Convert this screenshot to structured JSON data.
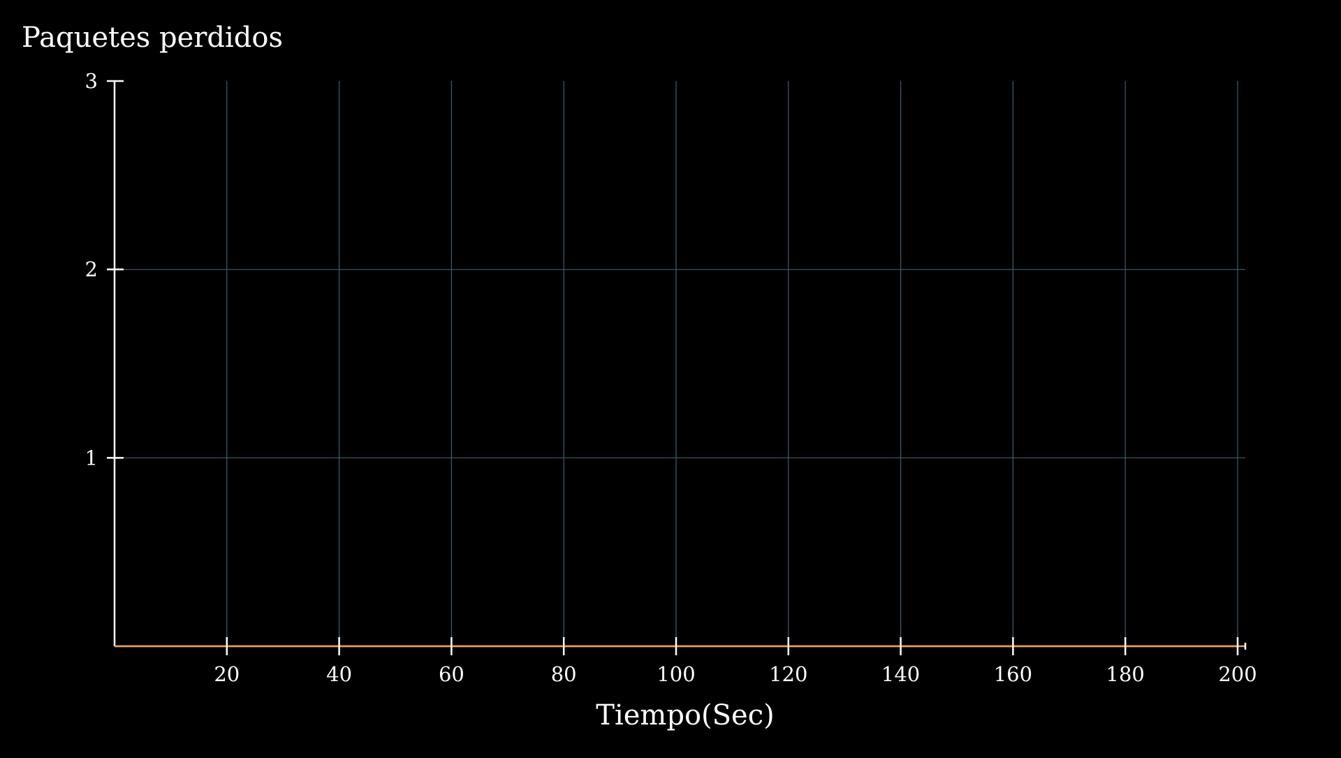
{
  "chart_data": {
    "type": "line",
    "title": "Paquetes perdidos",
    "xlabel": "Tiempo(Sec)",
    "ylabel": "",
    "xlim": [
      0,
      200
    ],
    "ylim": [
      0,
      3
    ],
    "x_ticks": [
      20,
      40,
      60,
      80,
      100,
      120,
      140,
      160,
      180,
      200
    ],
    "y_ticks": [
      1,
      2,
      3
    ],
    "grid": true,
    "series": [
      {
        "x": [
          0,
          20,
          40,
          60,
          80,
          100,
          120,
          140,
          160,
          180,
          200
        ],
        "values": [
          0,
          0,
          0,
          0,
          0,
          0,
          0,
          0,
          0,
          0,
          0
        ]
      }
    ],
    "colors": {
      "background": "#000000",
      "axis": "#ffffff",
      "grid": "#3d6070",
      "series": "#e8a15a"
    }
  }
}
